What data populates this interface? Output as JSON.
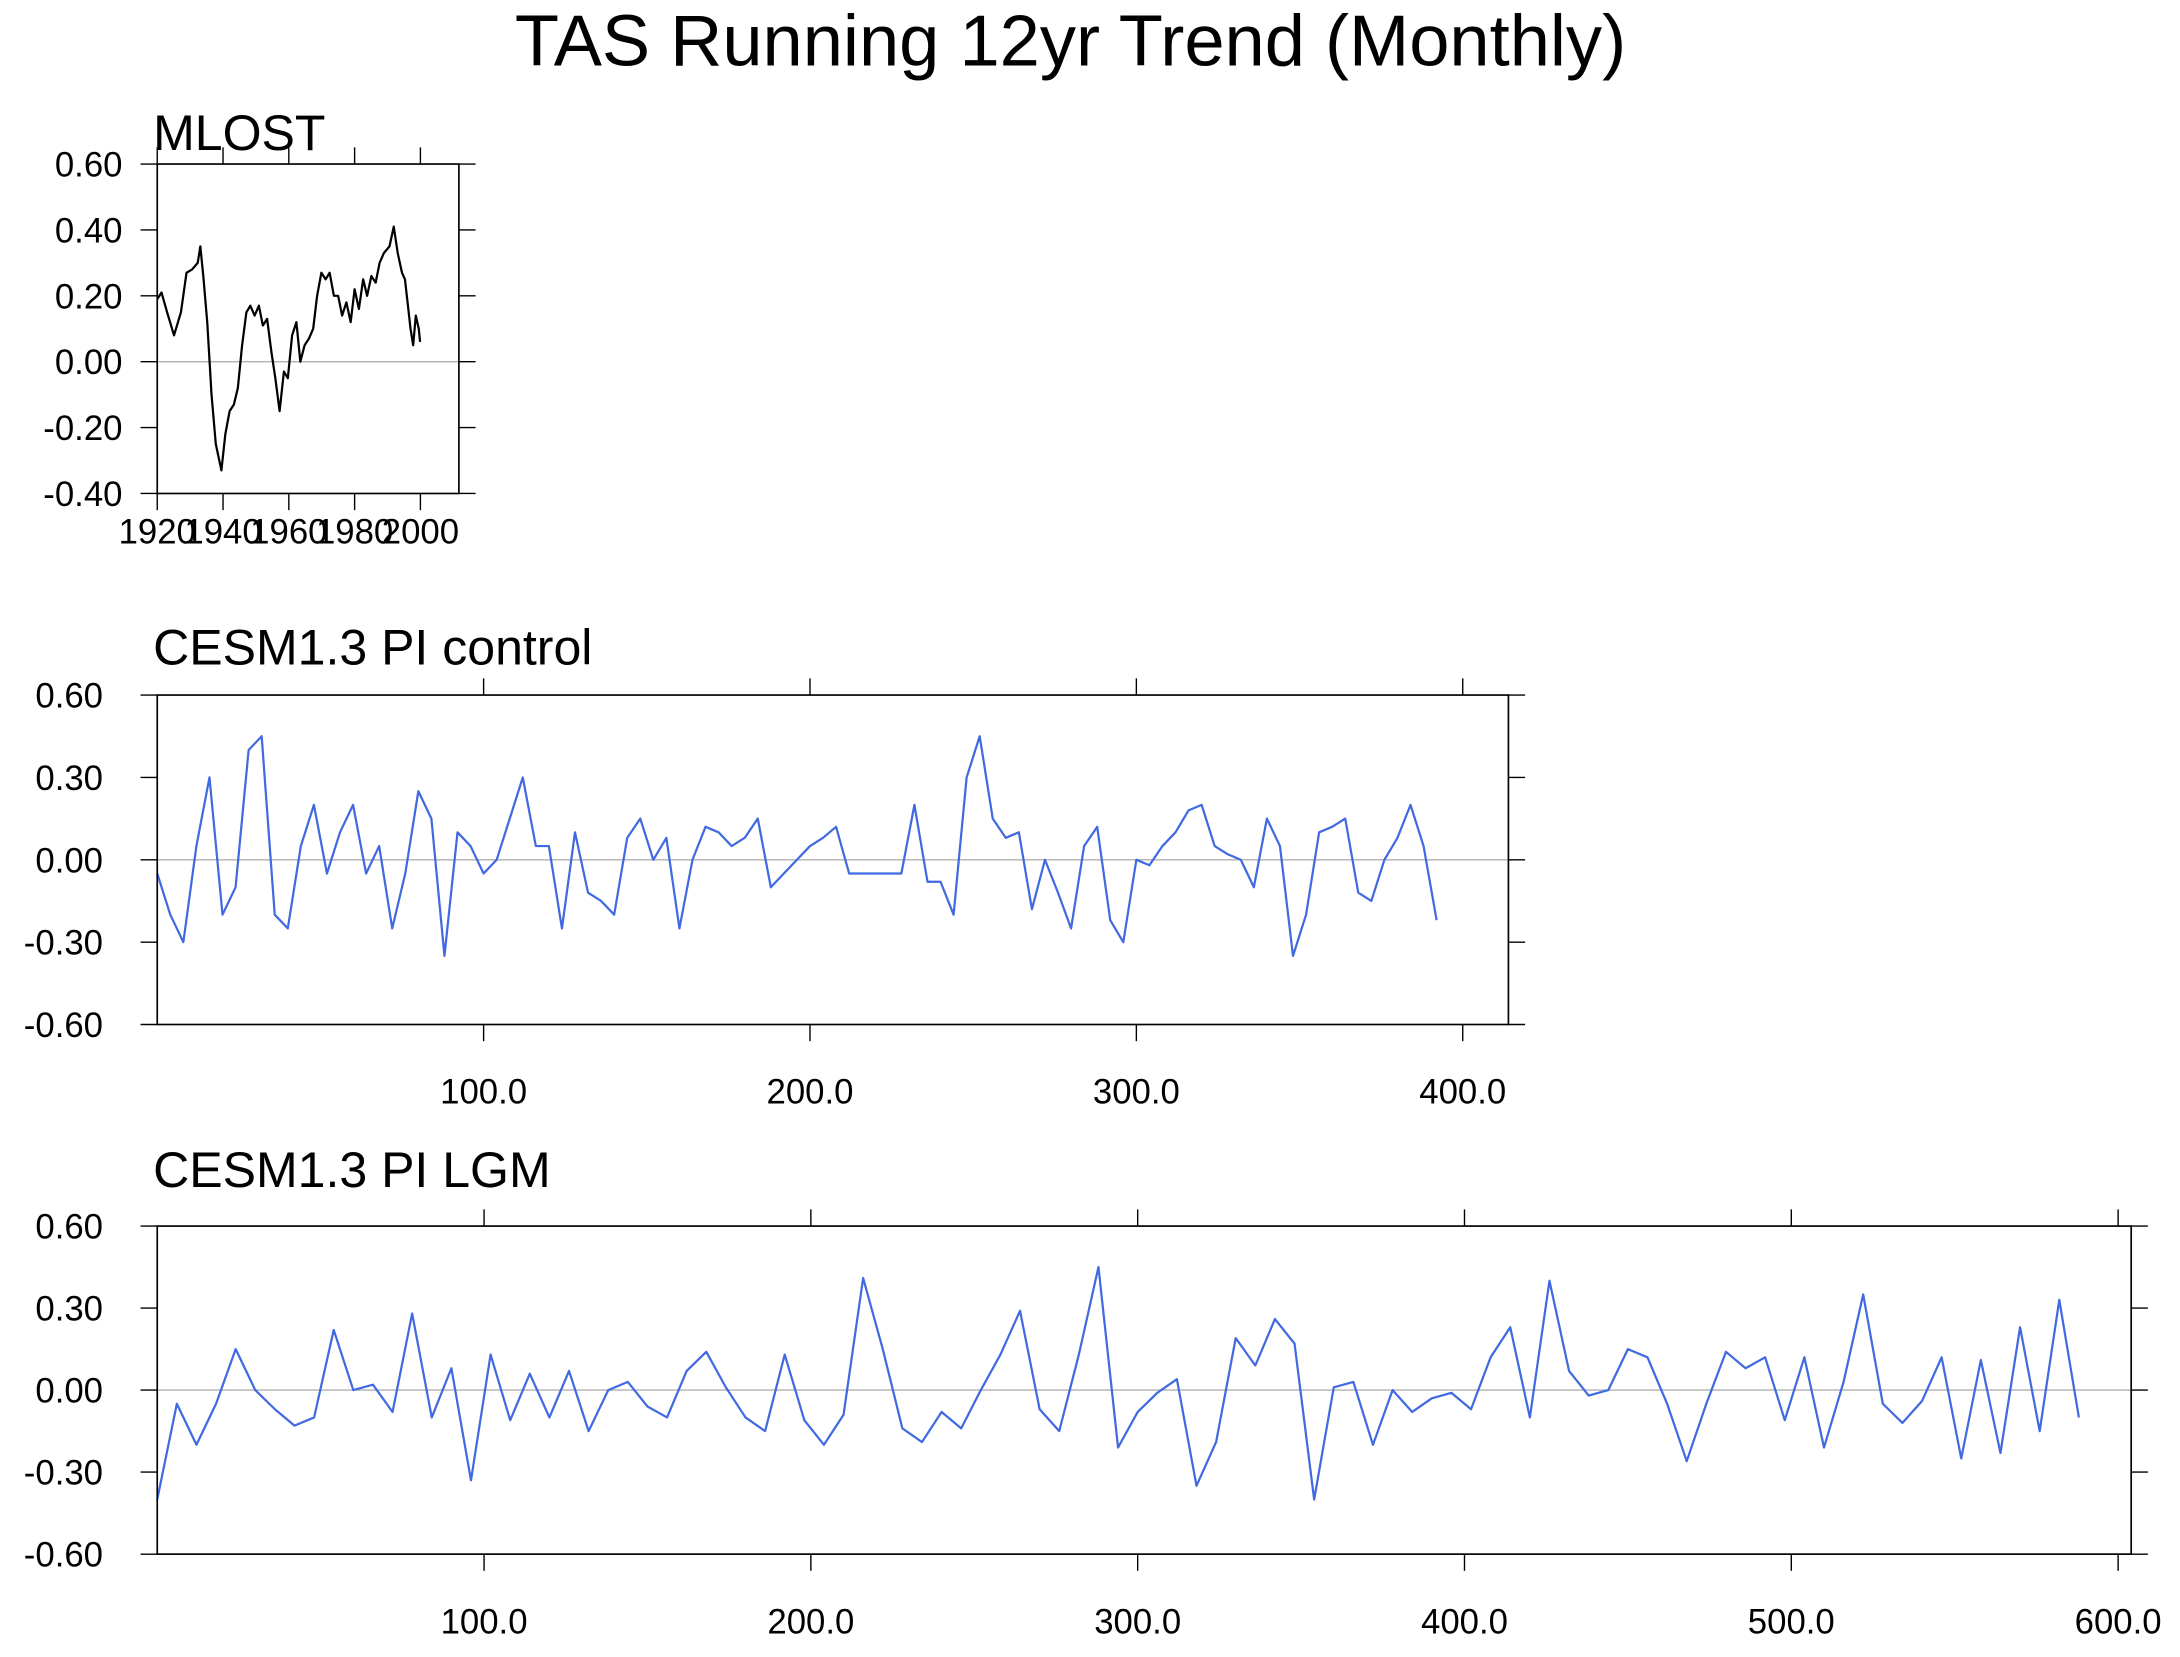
{
  "title": "TAS Running 12yr Trend (Monthly)",
  "chart_data": [
    {
      "type": "line",
      "title": "MLOST",
      "x": [
        1920.0,
        1921.3,
        1923.0,
        1925.1,
        1927.2,
        1928.9,
        1930.6,
        1932.3,
        1933.1,
        1934.0,
        1935.2,
        1936.5,
        1937.8,
        1939.5,
        1940.7,
        1942.0,
        1943.3,
        1944.5,
        1945.8,
        1947.1,
        1948.3,
        1949.6,
        1950.9,
        1952.1,
        1953.4,
        1954.7,
        1955.9,
        1957.2,
        1958.5,
        1959.7,
        1961.0,
        1962.3,
        1963.5,
        1964.8,
        1966.1,
        1967.4,
        1968.6,
        1969.9,
        1971.2,
        1972.4,
        1973.7,
        1975.0,
        1976.2,
        1977.5,
        1978.8,
        1980.0,
        1981.3,
        1982.6,
        1983.8,
        1985.1,
        1986.4,
        1987.6,
        1988.9,
        1990.6,
        1991.9,
        1993.1,
        1994.4,
        1995.3,
        1996.1,
        1997.0,
        1997.8,
        1998.6,
        1999.5,
        1999.9
      ],
      "series": [
        {
          "color": "#000000",
          "values": [
            0.19,
            0.21,
            0.15,
            0.08,
            0.15,
            0.27,
            0.28,
            0.3,
            0.35,
            0.26,
            0.12,
            -0.1,
            -0.25,
            -0.33,
            -0.22,
            -0.15,
            -0.13,
            -0.08,
            0.05,
            0.15,
            0.17,
            0.14,
            0.17,
            0.11,
            0.13,
            0.03,
            -0.05,
            -0.15,
            -0.03,
            -0.05,
            0.08,
            0.12,
            0.0,
            0.05,
            0.07,
            0.1,
            0.2,
            0.27,
            0.25,
            0.27,
            0.2,
            0.2,
            0.14,
            0.18,
            0.12,
            0.22,
            0.16,
            0.25,
            0.2,
            0.26,
            0.24,
            0.3,
            0.33,
            0.35,
            0.41,
            0.33,
            0.27,
            0.25,
            0.18,
            0.1,
            0.05,
            0.14,
            0.1,
            0.06
          ]
        }
      ],
      "xlim": [
        1920,
        2011.7
      ],
      "ylim": [
        -0.4,
        0.6
      ],
      "xticks": [
        1920,
        1940,
        1960,
        1980,
        2000
      ],
      "yticks": [
        {
          "value": -0.4,
          "label": "-0.40"
        },
        {
          "value": -0.2,
          "label": "-0.20"
        },
        {
          "value": 0,
          "label": "0.00"
        },
        {
          "value": 0.2,
          "label": "0.20"
        },
        {
          "value": 0.4,
          "label": "0.40"
        },
        {
          "value": 0.6,
          "label": "0.60"
        }
      ]
    },
    {
      "type": "line",
      "title": "CESM1.3 PI control",
      "x": [
        0,
        4,
        8,
        12,
        16,
        20,
        24,
        28,
        32,
        36,
        40,
        44,
        48,
        52,
        56,
        60,
        64,
        68,
        72,
        76,
        80,
        84,
        88,
        92,
        96,
        100,
        104,
        108,
        112,
        116,
        120,
        124,
        128,
        132,
        136,
        140,
        144,
        148,
        152,
        156,
        160,
        164,
        168,
        172,
        176,
        180,
        184,
        188,
        192,
        196,
        200,
        204,
        208,
        212,
        216,
        220,
        224,
        228,
        232,
        236,
        240,
        244,
        248,
        252,
        256,
        260,
        264,
        268,
        272,
        276,
        280,
        284,
        288,
        292,
        296,
        300,
        304,
        308,
        312,
        316,
        320,
        324,
        328,
        332,
        336,
        340,
        344,
        348,
        352,
        356,
        360,
        364,
        368,
        372,
        376,
        380,
        384,
        388,
        392
      ],
      "series": [
        {
          "color": "#4169e1",
          "values": [
            -0.05,
            -0.2,
            -0.3,
            0.05,
            0.3,
            -0.2,
            -0.1,
            0.4,
            0.45,
            -0.2,
            -0.25,
            0.05,
            0.2,
            -0.05,
            0.1,
            0.2,
            -0.05,
            0.05,
            -0.25,
            -0.05,
            0.25,
            0.15,
            -0.35,
            0.1,
            0.05,
            -0.05,
            0.0,
            0.15,
            0.3,
            0.05,
            0.05,
            -0.25,
            0.1,
            -0.12,
            -0.15,
            -0.2,
            0.08,
            0.15,
            0.0,
            0.08,
            -0.25,
            0.0,
            0.12,
            0.1,
            0.05,
            0.08,
            0.15,
            -0.1,
            -0.05,
            0.0,
            0.05,
            0.08,
            0.12,
            -0.05,
            -0.05,
            -0.05,
            -0.05,
            -0.05,
            0.2,
            -0.08,
            -0.08,
            -0.2,
            0.3,
            0.45,
            0.15,
            0.08,
            0.1,
            -0.18,
            0.0,
            -0.12,
            -0.25,
            0.05,
            0.12,
            -0.22,
            -0.3,
            0.0,
            -0.02,
            0.05,
            0.1,
            0.18,
            0.2,
            0.05,
            0.02,
            0.0,
            -0.1,
            0.15,
            0.05,
            -0.35,
            -0.2,
            0.1,
            0.12,
            0.15,
            -0.12,
            -0.15,
            0.0,
            0.08,
            0.2,
            0.05,
            -0.22
          ]
        }
      ],
      "xlim": [
        0,
        414
      ],
      "ylim": [
        -0.6,
        0.6
      ],
      "xticks": [
        {
          "value": 100,
          "label": "100.0"
        },
        {
          "value": 200,
          "label": "200.0"
        },
        {
          "value": 300,
          "label": "300.0"
        },
        {
          "value": 400,
          "label": "400.0"
        }
      ],
      "yticks": [
        {
          "value": -0.6,
          "label": "-0.60"
        },
        {
          "value": -0.3,
          "label": "-0.30"
        },
        {
          "value": 0,
          "label": "0.00"
        },
        {
          "value": 0.3,
          "label": "0.30"
        },
        {
          "value": 0.6,
          "label": "0.60"
        }
      ]
    },
    {
      "type": "line",
      "title": "CESM1.3 PI LGM",
      "x": [
        0,
        6,
        12,
        18,
        24,
        30,
        36,
        42,
        48,
        54,
        60,
        66,
        72,
        78,
        84,
        90,
        96,
        102,
        108,
        114,
        120,
        126,
        132,
        138,
        144,
        150,
        156,
        162,
        168,
        174,
        180,
        186,
        192,
        198,
        204,
        210,
        216,
        222,
        228,
        234,
        240,
        246,
        252,
        258,
        264,
        270,
        276,
        282,
        288,
        294,
        300,
        306,
        312,
        318,
        324,
        330,
        336,
        342,
        348,
        354,
        360,
        366,
        372,
        378,
        384,
        390,
        396,
        402,
        408,
        414,
        420,
        426,
        432,
        438,
        444,
        450,
        456,
        462,
        468,
        474,
        480,
        486,
        492,
        498,
        504,
        510,
        516,
        522,
        528,
        534,
        540,
        546,
        552,
        558,
        564,
        570,
        576,
        582,
        588
      ],
      "series": [
        {
          "color": "#4169e1",
          "values": [
            -0.4,
            -0.05,
            -0.2,
            -0.05,
            0.15,
            0.0,
            -0.07,
            -0.13,
            -0.1,
            0.22,
            0.0,
            0.02,
            -0.08,
            0.28,
            -0.1,
            0.08,
            -0.33,
            0.13,
            -0.11,
            0.06,
            -0.1,
            0.07,
            -0.15,
            0.0,
            0.03,
            -0.06,
            -0.1,
            0.07,
            0.14,
            0.01,
            -0.1,
            -0.15,
            0.13,
            -0.11,
            -0.2,
            -0.09,
            0.41,
            0.15,
            -0.14,
            -0.19,
            -0.08,
            -0.14,
            0.0,
            0.13,
            0.29,
            -0.07,
            -0.15,
            0.13,
            0.45,
            -0.21,
            -0.08,
            -0.01,
            0.04,
            -0.35,
            -0.19,
            0.19,
            0.09,
            0.26,
            0.17,
            -0.4,
            0.01,
            0.03,
            -0.2,
            0.0,
            -0.08,
            -0.03,
            -0.01,
            -0.07,
            0.12,
            0.23,
            -0.1,
            0.4,
            0.07,
            -0.02,
            0.0,
            0.15,
            0.12,
            -0.05,
            -0.26,
            -0.05,
            0.14,
            0.08,
            0.12,
            -0.11,
            0.12,
            -0.21,
            0.03,
            0.35,
            -0.05,
            -0.12,
            -0.04,
            0.12,
            -0.25,
            0.11,
            -0.23,
            0.23,
            -0.15,
            0.33,
            -0.1
          ]
        }
      ],
      "xlim": [
        0,
        604
      ],
      "ylim": [
        -0.6,
        0.6
      ],
      "xticks": [
        {
          "value": 100,
          "label": "100.0"
        },
        {
          "value": 200,
          "label": "200.0"
        },
        {
          "value": 300,
          "label": "300.0"
        },
        {
          "value": 400,
          "label": "400.0"
        },
        {
          "value": 500,
          "label": "500.0"
        },
        {
          "value": 600,
          "label": "600.0"
        }
      ],
      "yticks": [
        {
          "value": -0.6,
          "label": "-0.60"
        },
        {
          "value": -0.3,
          "label": "-0.30"
        },
        {
          "value": 0,
          "label": "0.00"
        },
        {
          "value": 0.3,
          "label": "0.30"
        },
        {
          "value": 0.6,
          "label": "0.60"
        }
      ]
    }
  ]
}
